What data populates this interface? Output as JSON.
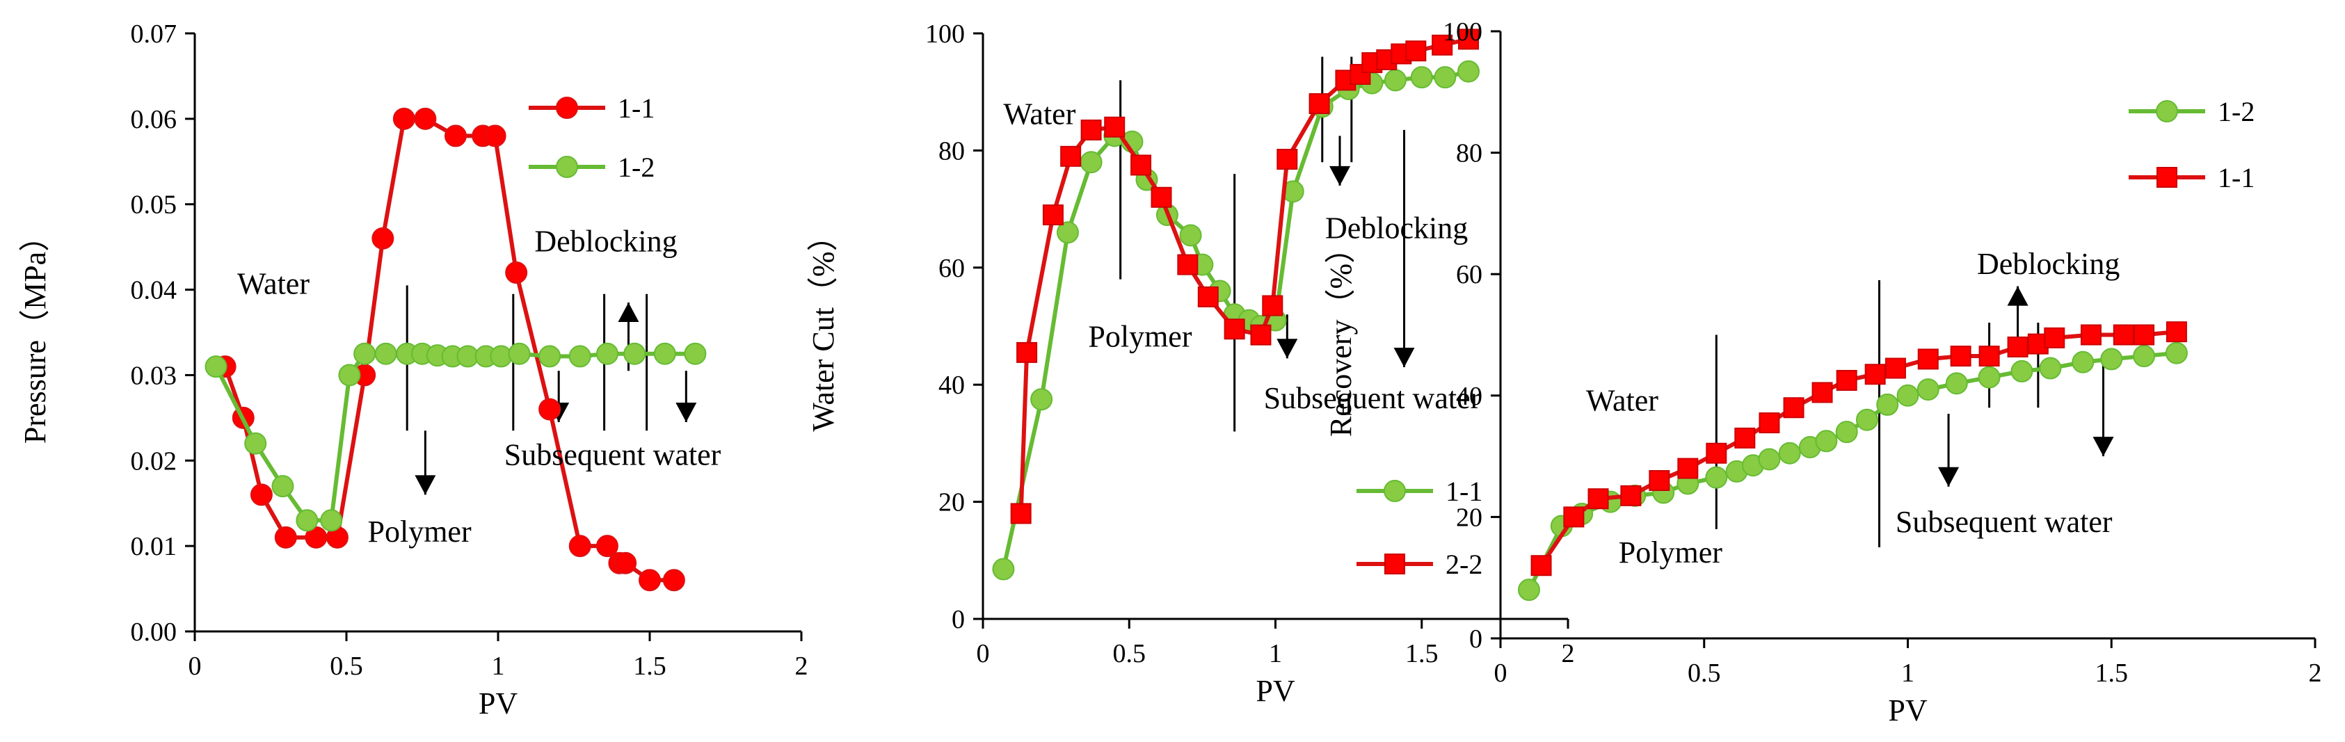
{
  "chart_data": [
    {
      "type": "line",
      "title": "",
      "xlabel": "PV",
      "ylabel": "Pressure（MPa）",
      "xlim": [
        0,
        2
      ],
      "ylim": [
        0,
        0.07
      ],
      "xticks": [
        0,
        0.5,
        1,
        1.5,
        2
      ],
      "xtick_labels": [
        "0",
        "0.5",
        "1",
        "1.5",
        "2"
      ],
      "yticks": [
        0,
        0.01,
        0.02,
        0.03,
        0.04,
        0.05,
        0.06,
        0.07
      ],
      "ytick_labels": [
        "0.00",
        "0.01",
        "0.02",
        "0.03",
        "0.04",
        "0.05",
        "0.06",
        "0.07"
      ],
      "legend_position": "top-right",
      "series": [
        {
          "name": "1-1",
          "color": "#ff0000",
          "marker": "circle",
          "line_color": "#dd1111",
          "x": [
            0.1,
            0.16,
            0.22,
            0.3,
            0.4,
            0.47,
            0.56,
            0.62,
            0.69,
            0.76,
            0.86,
            0.95,
            0.99,
            1.06,
            1.17,
            1.27,
            1.36,
            1.4,
            1.42,
            1.5,
            1.58
          ],
          "y": [
            0.031,
            0.025,
            0.016,
            0.011,
            0.011,
            0.011,
            0.03,
            0.046,
            0.06,
            0.06,
            0.058,
            0.058,
            0.058,
            0.042,
            0.026,
            0.01,
            0.01,
            0.008,
            0.008,
            0.006,
            0.006
          ]
        },
        {
          "name": "1-2",
          "color": "#88cc44",
          "marker": "circle",
          "line_color": "#66bb33",
          "x": [
            0.07,
            0.2,
            0.29,
            0.37,
            0.45,
            0.51,
            0.56,
            0.63,
            0.7,
            0.75,
            0.8,
            0.85,
            0.9,
            0.96,
            1.01,
            1.07,
            1.17,
            1.27,
            1.36,
            1.45,
            1.55,
            1.65
          ],
          "y": [
            0.031,
            0.022,
            0.017,
            0.013,
            0.013,
            0.03,
            0.0325,
            0.0325,
            0.0325,
            0.0325,
            0.0323,
            0.0322,
            0.0322,
            0.0322,
            0.0322,
            0.0325,
            0.0322,
            0.0322,
            0.0325,
            0.0325,
            0.0325,
            0.0325
          ]
        }
      ],
      "annotations": [
        {
          "text": "Water",
          "x": 0.14,
          "y": 0.0395
        },
        {
          "text": "Polymer",
          "x": 0.57,
          "y": 0.0105
        },
        {
          "text": "Deblocking",
          "x": 1.12,
          "y": 0.0445
        },
        {
          "text": "Subsequent water",
          "x": 1.02,
          "y": 0.0195
        }
      ],
      "markers": [
        {
          "line_x": 0.7,
          "line_y": [
            0.0235,
            0.0405
          ],
          "arrow_x": 0.76,
          "arrow_y": [
            0.0235,
            0.016
          ],
          "dir": "down"
        },
        {
          "line_x": 1.05,
          "line_y": [
            0.0235,
            0.0395
          ],
          "arrow_x": 1.2,
          "arrow_y": [
            0.0305,
            0.0245
          ],
          "dir": "down"
        },
        {
          "line_x": 1.35,
          "line_y": [
            0.0235,
            0.0395
          ],
          "arrow_x": 1.43,
          "arrow_y": [
            0.0305,
            0.0385
          ],
          "dir": "up"
        },
        {
          "line_x": 1.49,
          "line_y": [
            0.0235,
            0.0395
          ],
          "arrow_x": 1.62,
          "arrow_y": [
            0.0305,
            0.0245
          ],
          "dir": "down"
        }
      ]
    },
    {
      "type": "line",
      "title": "",
      "xlabel": "PV",
      "ylabel": "Water Cut（%）",
      "xlim": [
        0,
        2
      ],
      "ylim": [
        0,
        100
      ],
      "xticks": [
        0,
        0.5,
        1,
        1.5,
        2
      ],
      "xtick_labels": [
        "0",
        "0.5",
        "1",
        "1.5",
        "2"
      ],
      "yticks": [
        0,
        20,
        40,
        60,
        80,
        100
      ],
      "ytick_labels": [
        "0",
        "20",
        "40",
        "60",
        "80",
        "100"
      ],
      "legend_position": "bottom-right",
      "series": [
        {
          "name": "1-1",
          "color": "#88cc44",
          "marker": "circle",
          "line_color": "#66bb33",
          "x": [
            0.07,
            0.2,
            0.29,
            0.37,
            0.45,
            0.51,
            0.56,
            0.63,
            0.71,
            0.75,
            0.81,
            0.86,
            0.91,
            0.95,
            1.0,
            1.06,
            1.16,
            1.25,
            1.33,
            1.41,
            1.5,
            1.58,
            1.66
          ],
          "y": [
            8.5,
            37.5,
            66,
            78,
            82.5,
            81.5,
            75,
            69,
            65.5,
            60.5,
            56,
            52,
            51,
            50,
            51,
            73,
            87.5,
            90.5,
            91.5,
            92,
            92.5,
            92.5,
            93.5
          ]
        },
        {
          "name": "2-2",
          "color": "#ff0000",
          "marker": "square",
          "line_color": "#dd1111",
          "x": [
            0.13,
            0.15,
            0.24,
            0.3,
            0.37,
            0.45,
            0.54,
            0.61,
            0.7,
            0.77,
            0.86,
            0.95,
            0.99,
            1.04,
            1.15,
            1.24,
            1.29,
            1.33,
            1.38,
            1.43,
            1.48,
            1.57,
            1.66
          ],
          "y": [
            18,
            45.5,
            69,
            79,
            83.5,
            84,
            77.5,
            72,
            60.5,
            55,
            49.5,
            48.5,
            53.5,
            78.5,
            88,
            92,
            93,
            95,
            95.5,
            96.5,
            97,
            98,
            99
          ]
        }
      ],
      "annotations": [
        {
          "text": "Water",
          "x": 0.07,
          "y": 84.5
        },
        {
          "text": "Polymer",
          "x": 0.36,
          "y": 46.5
        },
        {
          "text": "Deblocking",
          "x": 1.17,
          "y": 65
        },
        {
          "text": "Subsequent water",
          "x": 0.96,
          "y": 36
        }
      ],
      "markers": [
        {
          "line_x": 0.47,
          "line_y": [
            58,
            92
          ],
          "arrow_x": 0.47,
          "arrow_y": [
            58,
            58
          ],
          "dir": "none"
        },
        {
          "line_x": 0.86,
          "line_y": [
            32,
            76
          ],
          "arrow_x": 1.04,
          "arrow_y": [
            52,
            44.5
          ],
          "dir": "down"
        },
        {
          "line_x": 1.16,
          "line_y": [
            78,
            96
          ],
          "arrow_x": 1.22,
          "arrow_y": [
            82.5,
            74
          ],
          "dir": "down"
        },
        {
          "line_x": 1.26,
          "line_y": [
            78,
            96
          ],
          "arrow_x": 1.44,
          "arrow_y": [
            83.5,
            43
          ],
          "dir": "down"
        }
      ]
    },
    {
      "type": "line",
      "title": "",
      "xlabel": "PV",
      "ylabel": "Recovery（%）",
      "xlim": [
        0,
        2
      ],
      "ylim": [
        0,
        100
      ],
      "xticks": [
        0,
        0.5,
        1,
        1.5,
        2
      ],
      "xtick_labels": [
        "0",
        "0.5",
        "1",
        "1.5",
        "2"
      ],
      "yticks": [
        0,
        20,
        40,
        60,
        80,
        100
      ],
      "ytick_labels": [
        "0",
        "20",
        "40",
        "60",
        "80",
        "100"
      ],
      "legend_position": "top-right",
      "series": [
        {
          "name": "1-2",
          "color": "#88cc44",
          "marker": "circle",
          "line_color": "#66bb33",
          "x": [
            0.07,
            0.15,
            0.2,
            0.27,
            0.33,
            0.4,
            0.46,
            0.53,
            0.58,
            0.62,
            0.66,
            0.71,
            0.76,
            0.8,
            0.85,
            0.9,
            0.95,
            1.0,
            1.05,
            1.12,
            1.2,
            1.28,
            1.35,
            1.43,
            1.5,
            1.58,
            1.66
          ],
          "y": [
            8,
            18.5,
            20.5,
            22.5,
            23.5,
            24,
            25.5,
            26.5,
            27.5,
            28.5,
            29.5,
            30.5,
            31.5,
            32.5,
            34,
            36,
            38.5,
            40,
            41,
            42,
            43,
            44,
            44.5,
            45.5,
            46,
            46.5,
            47
          ]
        },
        {
          "name": "1-1",
          "color": "#ff0000",
          "marker": "square",
          "line_color": "#dd1111",
          "x": [
            0.1,
            0.18,
            0.24,
            0.32,
            0.39,
            0.46,
            0.53,
            0.6,
            0.66,
            0.72,
            0.79,
            0.85,
            0.92,
            0.97,
            1.05,
            1.13,
            1.2,
            1.27,
            1.32,
            1.36,
            1.45,
            1.53,
            1.58,
            1.66
          ],
          "y": [
            12,
            20,
            23,
            23.5,
            26,
            28,
            30.5,
            33,
            35.5,
            38,
            40.5,
            42.5,
            43.5,
            44.5,
            46,
            46.5,
            46.5,
            48,
            48.5,
            49.5,
            50,
            50,
            50,
            50.5
          ]
        }
      ],
      "annotations": [
        {
          "text": "Water",
          "x": 0.21,
          "y": 37.5
        },
        {
          "text": "Polymer",
          "x": 0.29,
          "y": 12.5
        },
        {
          "text": "Deblocking",
          "x": 1.17,
          "y": 60
        },
        {
          "text": "Subsequent water",
          "x": 0.97,
          "y": 17.5
        }
      ],
      "markers": [
        {
          "line_x": 0.53,
          "line_y": [
            18,
            50
          ],
          "arrow_x": 0.53,
          "arrow_y": [
            18,
            18
          ],
          "dir": "none"
        },
        {
          "line_x": 0.93,
          "line_y": [
            15,
            59
          ],
          "arrow_x": 1.1,
          "arrow_y": [
            37,
            25
          ],
          "dir": "down"
        },
        {
          "line_x": 1.2,
          "line_y": [
            38,
            52
          ],
          "arrow_x": 1.27,
          "arrow_y": [
            49,
            58
          ],
          "dir": "up"
        },
        {
          "line_x": 1.32,
          "line_y": [
            38,
            52
          ],
          "arrow_x": 1.48,
          "arrow_y": [
            46,
            30
          ],
          "dir": "down"
        }
      ]
    }
  ]
}
